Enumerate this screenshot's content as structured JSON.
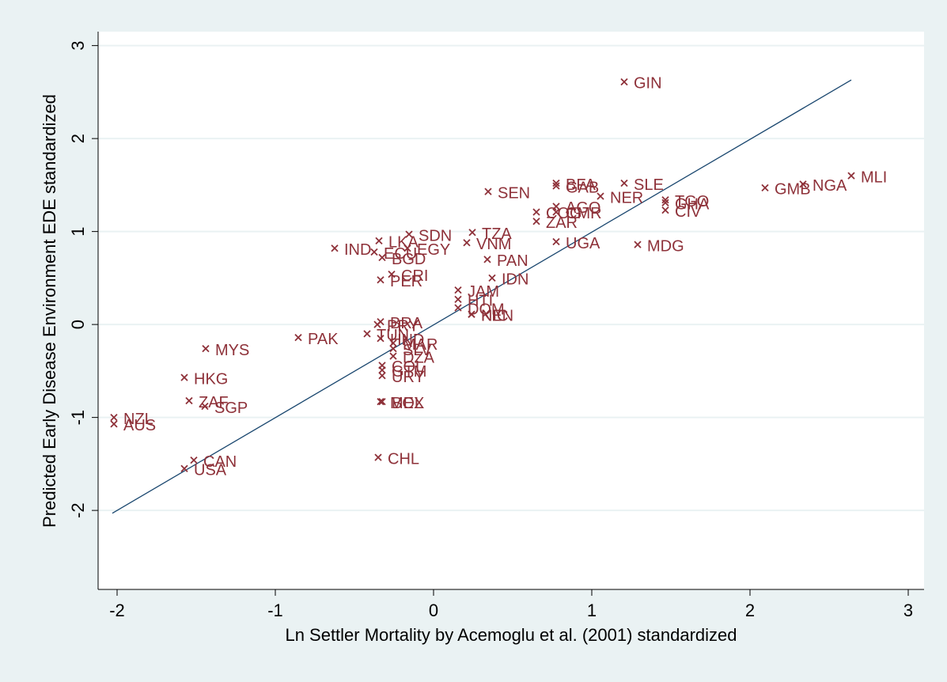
{
  "chart_data": {
    "type": "scatter",
    "x_label": "Ln Settler Mortality by Acemoglu et al. (2001) standardized",
    "y_label": "Predicted Early Disease Environment EDE standardized",
    "xlim": [
      -2.12,
      3.1
    ],
    "ylim": [
      -2.85,
      3.15
    ],
    "xticks": [
      -2,
      -1,
      0,
      1,
      2,
      3
    ],
    "yticks": [
      -2,
      -1,
      0,
      1,
      2,
      3
    ],
    "grid": true,
    "marker_color": "#8e3139",
    "line_color": "#1a476f",
    "point_labels": [
      "GIN",
      "BFA",
      "GAB",
      "SLE",
      "NER",
      "AGO",
      "COG",
      "CMR",
      "ZAR",
      "TGO",
      "GHA",
      "CIV",
      "GMB",
      "NGA",
      "MLI",
      "MDG",
      "UGA",
      "SEN",
      "TZA",
      "VNM",
      "SDN",
      "LKA",
      "EGY",
      "IND",
      "ECU",
      "BGD",
      "PAN",
      "CRI",
      "PER",
      "IDN",
      "JAM",
      "HTI",
      "DOM",
      "KEN",
      "NIC",
      "BRA",
      "PRY",
      "TUN",
      "HND",
      "MAR",
      "SLV",
      "DZA",
      "COL",
      "GTM",
      "URY",
      "MYS",
      "PAK",
      "HKG",
      "ZAF",
      "SGP",
      "NZL",
      "AUS",
      "MEX",
      "BOL",
      "CHL",
      "CAN",
      "USA"
    ],
    "x": [
      1.205,
      0.775,
      0.775,
      1.205,
      1.055,
      0.775,
      0.65,
      0.775,
      0.65,
      1.465,
      1.465,
      1.465,
      2.095,
      2.335,
      2.64,
      1.29,
      0.775,
      0.345,
      0.245,
      0.21,
      -0.155,
      -0.345,
      -0.165,
      -0.625,
      -0.375,
      -0.325,
      0.34,
      -0.265,
      -0.335,
      0.37,
      0.155,
      0.155,
      0.155,
      0.24,
      0.24,
      -0.335,
      -0.355,
      -0.42,
      -0.335,
      -0.255,
      -0.255,
      -0.255,
      -0.325,
      -0.325,
      -0.325,
      -1.44,
      -0.855,
      -1.575,
      -1.545,
      -1.445,
      -2.02,
      -2.02,
      -0.335,
      -0.325,
      -0.35,
      -1.515,
      -1.575
    ],
    "y": [
      2.61,
      1.52,
      1.49,
      1.52,
      1.38,
      1.27,
      1.21,
      1.21,
      1.11,
      1.34,
      1.31,
      1.23,
      1.47,
      1.51,
      1.6,
      0.86,
      0.89,
      1.43,
      0.99,
      0.88,
      0.97,
      0.9,
      0.82,
      0.82,
      0.78,
      0.72,
      0.7,
      0.54,
      0.48,
      0.5,
      0.37,
      0.27,
      0.18,
      0.11,
      0.11,
      0.03,
      0.0,
      -0.1,
      -0.15,
      -0.2,
      -0.26,
      -0.34,
      -0.44,
      -0.49,
      -0.55,
      -0.26,
      -0.14,
      -0.57,
      -0.82,
      -0.88,
      -1.0,
      -1.07,
      -0.83,
      -0.83,
      -1.43,
      -1.46,
      -1.55
    ],
    "fit_line": {
      "x": [
        -2.03,
        2.64
      ],
      "y": [
        -2.03,
        2.63
      ]
    }
  }
}
